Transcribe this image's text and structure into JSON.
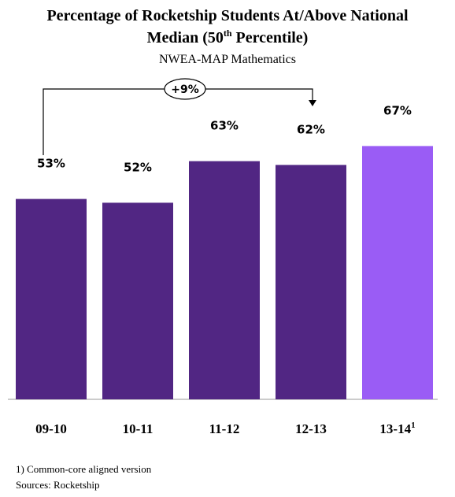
{
  "chart_data": {
    "type": "bar",
    "title": {
      "line1": "Percentage of Rocketship Students At/Above National",
      "line2_start": "Median (50",
      "line2_superscript": "th",
      "line2_end": " Percentile)"
    },
    "subtitle": "NWEA-MAP Mathematics",
    "categories": [
      "09-10",
      "10-11",
      "11-12",
      "12-13",
      "13-14"
    ],
    "category_superscripts": [
      null,
      null,
      null,
      null,
      "1"
    ],
    "values": [
      53,
      52,
      63,
      62,
      67
    ],
    "value_labels": [
      "53%",
      "52%",
      "63%",
      "62%",
      "67%"
    ],
    "colors": [
      "#512683",
      "#512683",
      "#512683",
      "#512683",
      "#9a5cf5"
    ],
    "ylim": [
      0,
      100
    ],
    "annotation": "+9%",
    "footnotes": [
      "1) Common-core aligned version",
      "Sources: Rocketship"
    ]
  }
}
